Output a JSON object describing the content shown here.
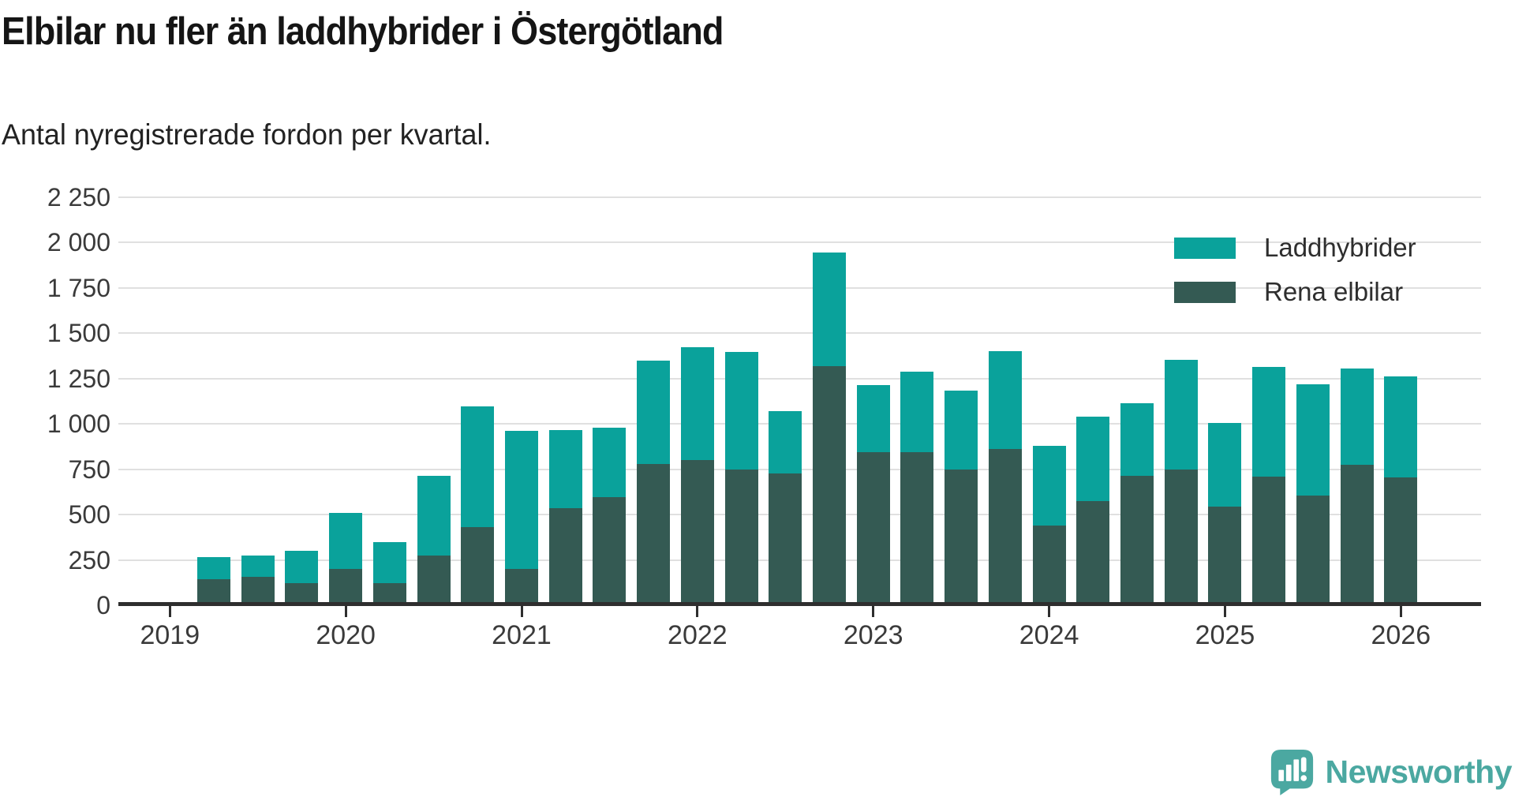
{
  "header": {
    "title": "Elbilar nu fler än laddhybrider i Östergötland",
    "subtitle": "Antal nyregistrerade fordon per kvartal."
  },
  "chart_data": {
    "type": "bar",
    "stacked": true,
    "title": "Elbilar nu fler än laddhybrider i Östergötland",
    "subtitle": "Antal nyregistrerade fordon per kvartal.",
    "xlabel": "",
    "ylabel": "",
    "ylim": [
      0,
      2250
    ],
    "grid": true,
    "legend_position": "top-right",
    "categories": [
      "2019 Q2",
      "2019 Q3",
      "2019 Q4",
      "2020 Q1",
      "2020 Q2",
      "2020 Q3",
      "2020 Q4",
      "2021 Q1",
      "2021 Q2",
      "2021 Q3",
      "2021 Q4",
      "2022 Q1",
      "2022 Q2",
      "2022 Q3",
      "2022 Q4",
      "2023 Q1",
      "2023 Q2",
      "2023 Q3",
      "2023 Q4",
      "2024 Q1",
      "2024 Q2",
      "2024 Q3",
      "2024 Q4",
      "2025 Q1",
      "2025 Q2",
      "2025 Q3",
      "2025 Q4",
      "2026 Q1"
    ],
    "series": [
      {
        "name": "Rena elbilar",
        "color": "#345a53",
        "stack_position": "bottom",
        "values": [
          145,
          155,
          120,
          200,
          120,
          275,
          430,
          200,
          535,
          595,
          780,
          800,
          750,
          725,
          1320,
          845,
          845,
          750,
          860,
          440,
          575,
          715,
          750,
          545,
          710,
          605,
          775,
          705
        ]
      },
      {
        "name": "Laddhybrider",
        "color": "#0aa29b",
        "stack_position": "top",
        "values": [
          120,
          120,
          180,
          310,
          230,
          440,
          665,
          760,
          430,
          385,
          570,
          625,
          645,
          345,
          625,
          370,
          445,
          435,
          540,
          440,
          465,
          400,
          605,
          460,
          605,
          615,
          530,
          555
        ]
      }
    ],
    "totals": [
      265,
      275,
      300,
      510,
      350,
      715,
      1095,
      960,
      965,
      980,
      1350,
      1425,
      1395,
      1070,
      1945,
      1215,
      1290,
      1185,
      1400,
      880,
      1040,
      1115,
      1355,
      1005,
      1315,
      1220,
      1305,
      1260
    ],
    "y_ticks": [
      {
        "value": 0,
        "label": "0"
      },
      {
        "value": 250,
        "label": "250"
      },
      {
        "value": 500,
        "label": "500"
      },
      {
        "value": 750,
        "label": "750"
      },
      {
        "value": 1000,
        "label": "1 000"
      },
      {
        "value": 1250,
        "label": "1 250"
      },
      {
        "value": 1500,
        "label": "1 500"
      },
      {
        "value": 1750,
        "label": "1 750"
      },
      {
        "value": 2000,
        "label": "2 000"
      },
      {
        "value": 2250,
        "label": "2 250"
      }
    ],
    "x_year_ticks": [
      "2019",
      "2020",
      "2021",
      "2022",
      "2023",
      "2024",
      "2025",
      "2026"
    ]
  },
  "legend": {
    "items": [
      {
        "label": "Laddhybrider",
        "color": "#0aa29b"
      },
      {
        "label": "Rena elbilar",
        "color": "#345a53"
      }
    ]
  },
  "branding": {
    "logo_text": "Newsworthy",
    "logo_color": "#4ba8a1"
  },
  "colors": {
    "laddhybrider": "#0aa29b",
    "rena_elbilar": "#345a53",
    "gridline": "#e0e0e0",
    "axis": "#2e2e2e",
    "background": "#ffffff"
  }
}
